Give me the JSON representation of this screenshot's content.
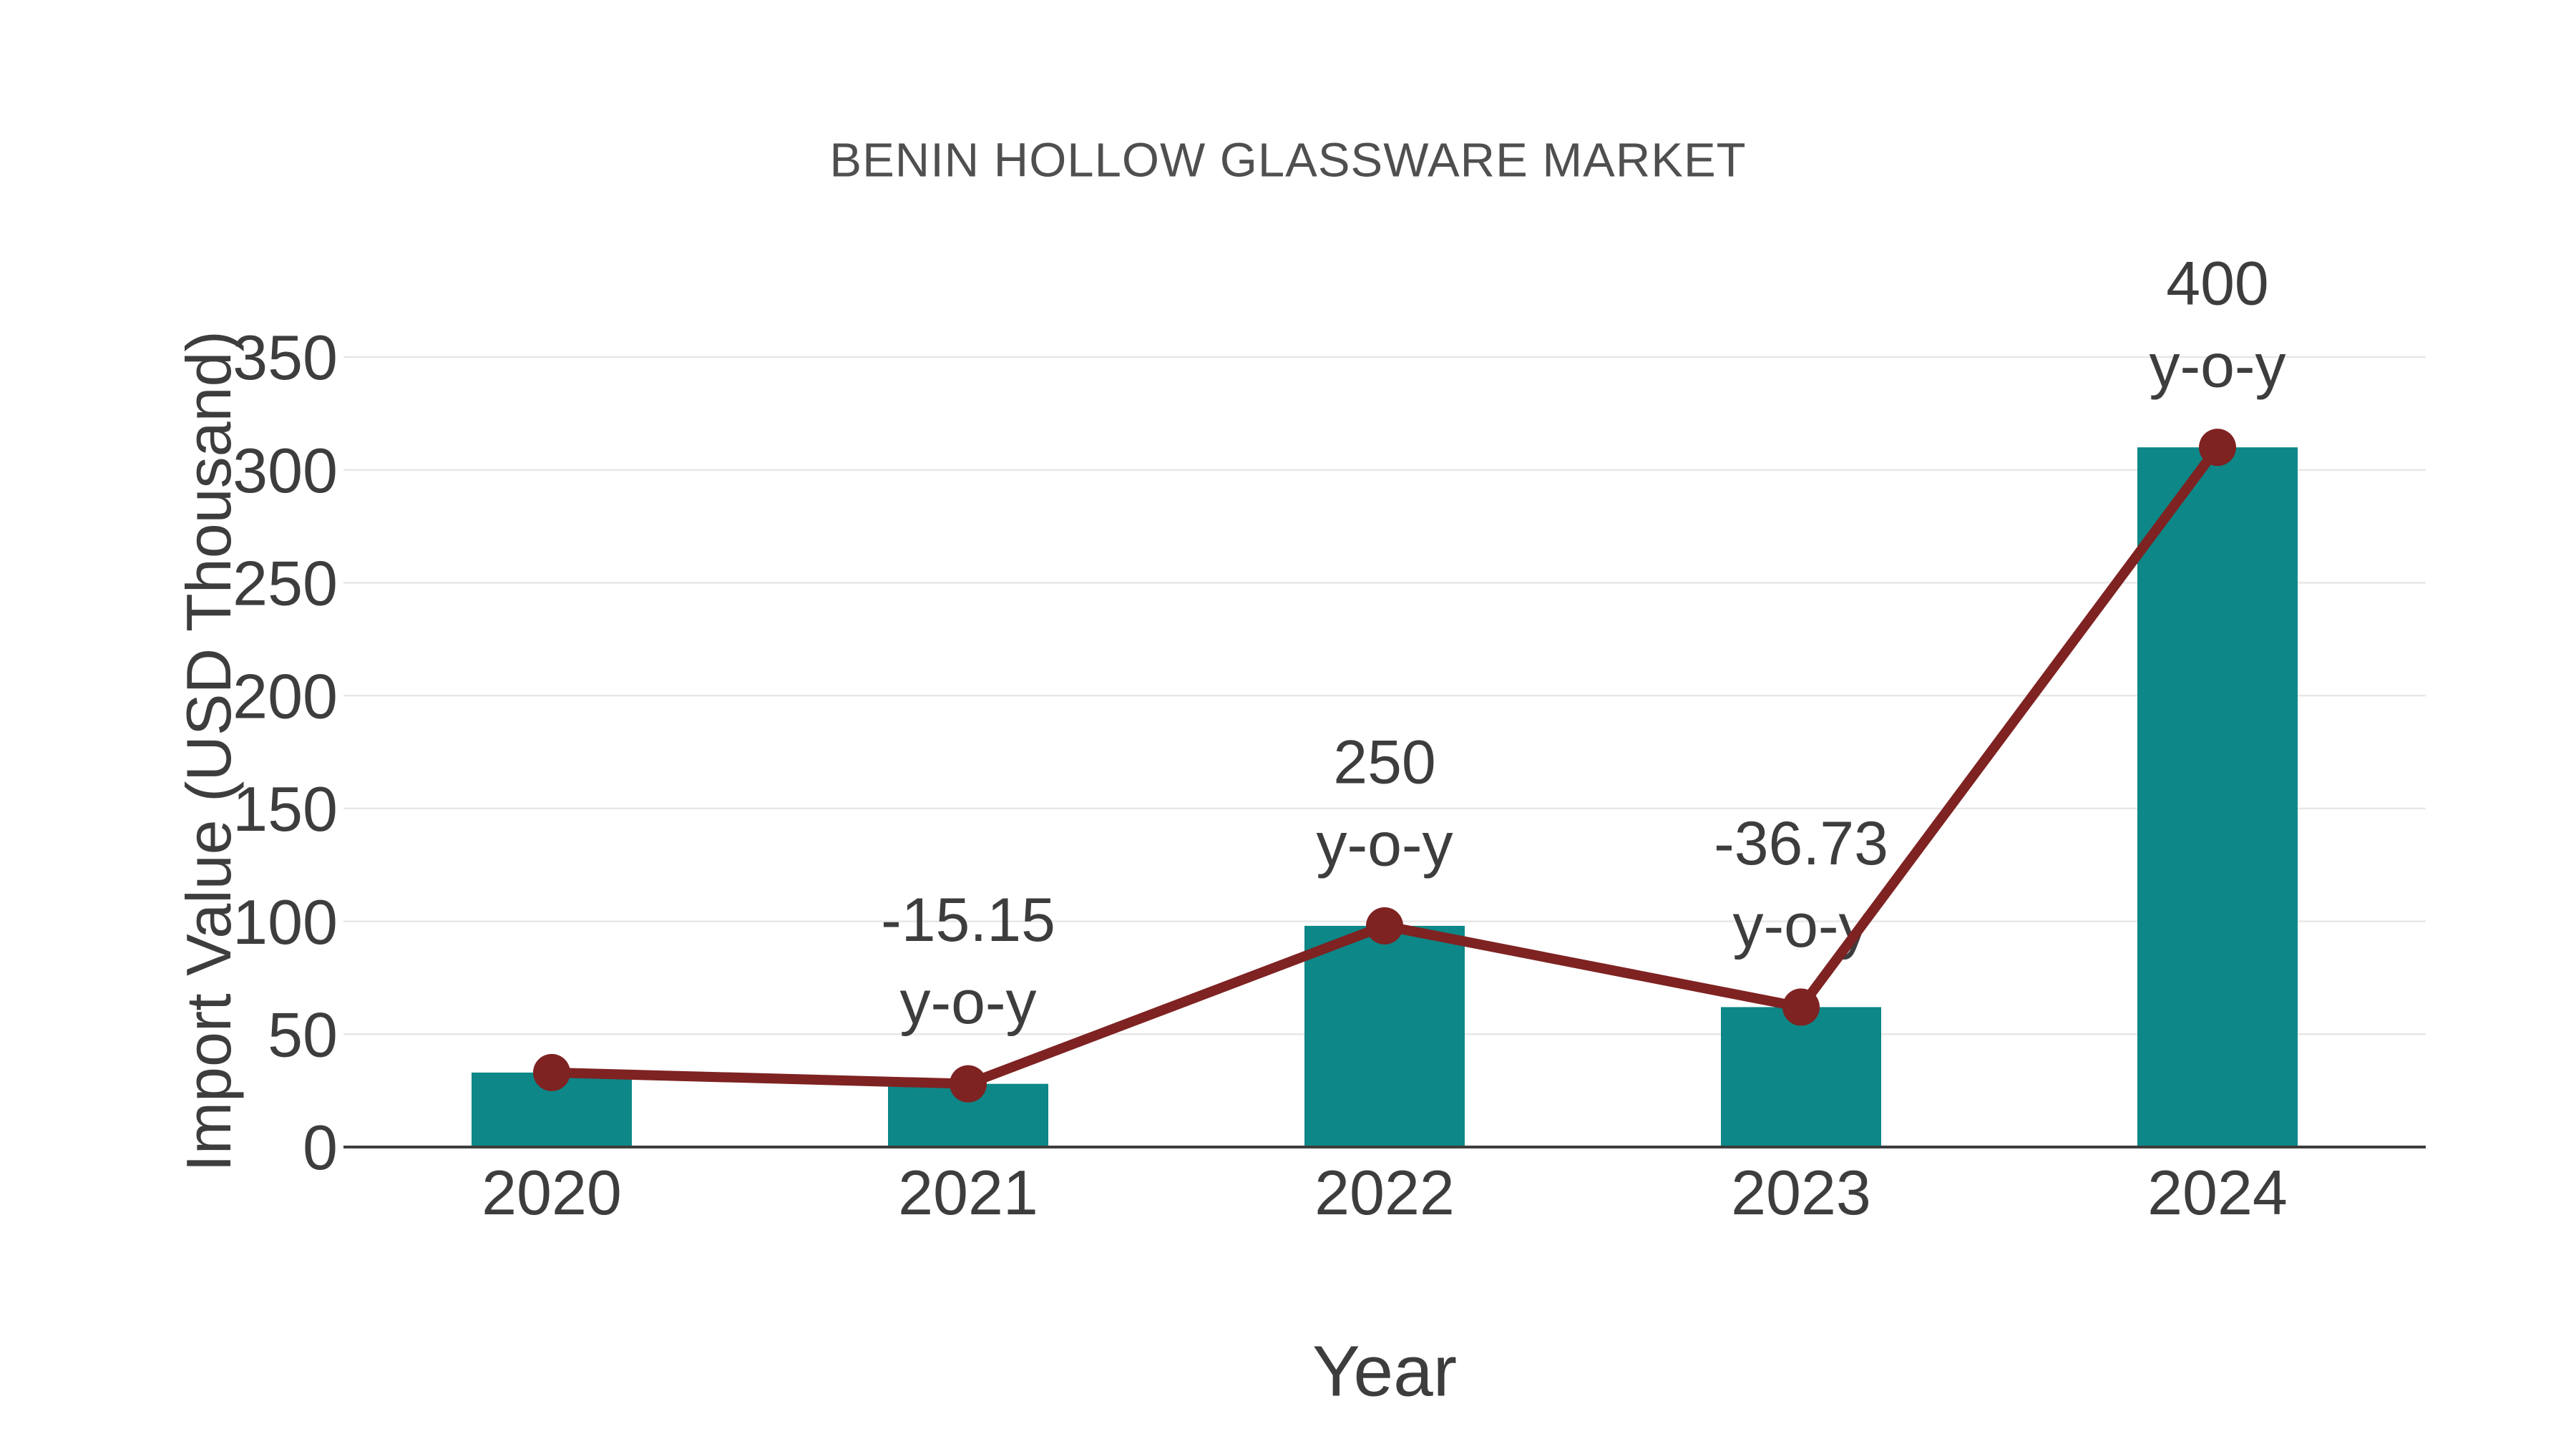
{
  "chart_data": {
    "type": "bar",
    "subtype": "bar-with-line-overlay",
    "title": "BENIN HOLLOW GLASSWARE MARKET",
    "xlabel": "Year",
    "ylabel": "Import Value (USD Thousand)",
    "categories": [
      "2020",
      "2021",
      "2022",
      "2023",
      "2024"
    ],
    "series": [
      {
        "name": "import-value-bars",
        "type": "bar",
        "values": [
          33,
          28,
          98,
          62,
          310
        ]
      },
      {
        "name": "import-value-trend",
        "type": "line",
        "values": [
          33,
          28,
          98,
          62,
          310
        ]
      }
    ],
    "annotations": [
      {
        "category": "2021",
        "value_label": "-15.15",
        "suffix_label": "y-o-y"
      },
      {
        "category": "2022",
        "value_label": "250",
        "suffix_label": "y-o-y"
      },
      {
        "category": "2023",
        "value_label": "-36.73",
        "suffix_label": "y-o-y"
      },
      {
        "category": "2024",
        "value_label": "400",
        "suffix_label": "y-o-y"
      }
    ],
    "yticks": [
      0,
      50,
      100,
      150,
      200,
      250,
      300,
      350
    ],
    "ylim": [
      0,
      350
    ],
    "grid": "horizontal",
    "legend": "none"
  },
  "colors": {
    "bar": "#0d8787",
    "line": "#7f2222",
    "marker": "#7f2222",
    "grid": "#e7e7e7",
    "axis": "#3d3d3d",
    "tick_text": "#3d3d3d",
    "annotation_text": "#3d3d3d",
    "title_text": "#4f4f4f",
    "background": "#ffffff"
  }
}
